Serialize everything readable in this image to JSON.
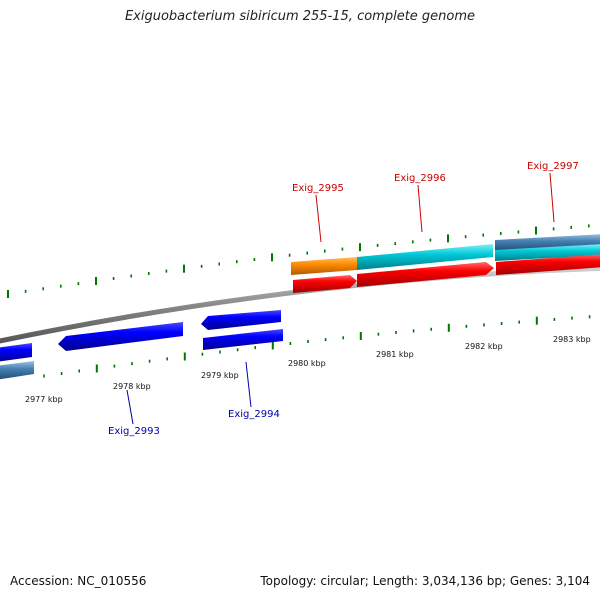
{
  "title": "Exiguobacterium sibiricum 255-15, complete genome",
  "footer": {
    "accession": "Accession: NC_010556",
    "topology": "Topology: circular; Length: 3,034,136 bp; Genes: 3,104"
  },
  "colors": {
    "backbone": "#8a8a8a",
    "forward_gene": "#ff0000",
    "reverse_gene": "#0000ff",
    "cds_teal": "#00c8d8",
    "cds_orange": "#ff8c00",
    "cds_steel": "#4682b4",
    "tick": "#007700",
    "label_forward": "#cc0000",
    "label_reverse": "#0000aa"
  },
  "scale_labels": [
    "2977 kbp",
    "2978 kbp",
    "2979 kbp",
    "2980 kbp",
    "2981 kbp",
    "2982 kbp",
    "2983 kbp"
  ],
  "genes": [
    {
      "name": "Exig_2993",
      "strand": "reverse"
    },
    {
      "name": "Exig_2994",
      "strand": "reverse"
    },
    {
      "name": "Exig_2995",
      "strand": "forward"
    },
    {
      "name": "Exig_2996",
      "strand": "forward"
    },
    {
      "name": "Exig_2997",
      "strand": "forward"
    }
  ]
}
